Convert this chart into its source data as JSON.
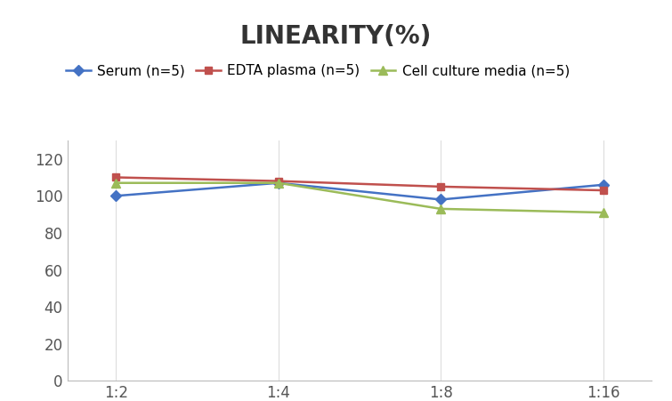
{
  "title": "LINEARITY(%)",
  "x_labels": [
    "1:2",
    "1:4",
    "1:8",
    "1:16"
  ],
  "x_positions": [
    0,
    1,
    2,
    3
  ],
  "series": [
    {
      "label": "Serum (n=5)",
      "values": [
        100,
        107,
        98,
        106
      ],
      "color": "#4472C4",
      "marker": "D",
      "marker_size": 6
    },
    {
      "label": "EDTA plasma (n=5)",
      "values": [
        110,
        108,
        105,
        103
      ],
      "color": "#C0504D",
      "marker": "s",
      "marker_size": 6
    },
    {
      "label": "Cell culture media (n=5)",
      "values": [
        107,
        107,
        93,
        91
      ],
      "color": "#9BBB59",
      "marker": "^",
      "marker_size": 7
    }
  ],
  "ylim": [
    0,
    130
  ],
  "yticks": [
    0,
    20,
    40,
    60,
    80,
    100,
    120
  ],
  "title_fontsize": 20,
  "legend_fontsize": 11,
  "tick_fontsize": 12,
  "background_color": "#ffffff",
  "grid_color": "#dddddd",
  "spine_color": "#bbbbbb"
}
